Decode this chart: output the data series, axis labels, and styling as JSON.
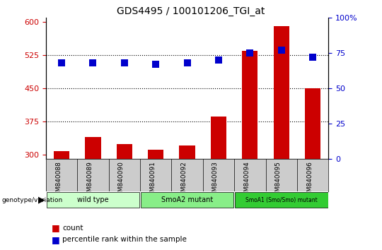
{
  "title": "GDS4495 / 100101206_TGI_at",
  "samples": [
    "GSM840088",
    "GSM840089",
    "GSM840090",
    "GSM840091",
    "GSM840092",
    "GSM840093",
    "GSM840094",
    "GSM840095",
    "GSM840096"
  ],
  "counts": [
    308,
    340,
    323,
    310,
    320,
    385,
    535,
    590,
    450
  ],
  "percentiles": [
    68,
    68,
    68,
    67,
    68,
    70,
    75,
    77,
    72
  ],
  "groups": [
    {
      "label": "wild type",
      "span": [
        0,
        3
      ],
      "color": "#ccffcc"
    },
    {
      "label": "SmoA2 mutant",
      "span": [
        3,
        6
      ],
      "color": "#88ee88"
    },
    {
      "label": "SmoA1 (Smo/Smo) mutant",
      "span": [
        6,
        9
      ],
      "color": "#33cc33"
    }
  ],
  "bar_color": "#cc0000",
  "dot_color": "#0000cc",
  "ylim_left": [
    290,
    610
  ],
  "ylim_right": [
    0,
    100
  ],
  "yticks_left": [
    300,
    375,
    450,
    525,
    600
  ],
  "yticks_right": [
    0,
    25,
    50,
    75,
    100
  ],
  "hlines": [
    375,
    450,
    525
  ],
  "bar_width": 0.5,
  "dot_size": 55,
  "legend_count_label": "count",
  "legend_percentile_label": "percentile rank within the sample",
  "genotype_label": "genotype/variation",
  "tick_color": "#cc0000",
  "right_tick_color": "#0000cc",
  "cell_bg_color": "#cccccc",
  "plot_bg_color": "#ffffff"
}
